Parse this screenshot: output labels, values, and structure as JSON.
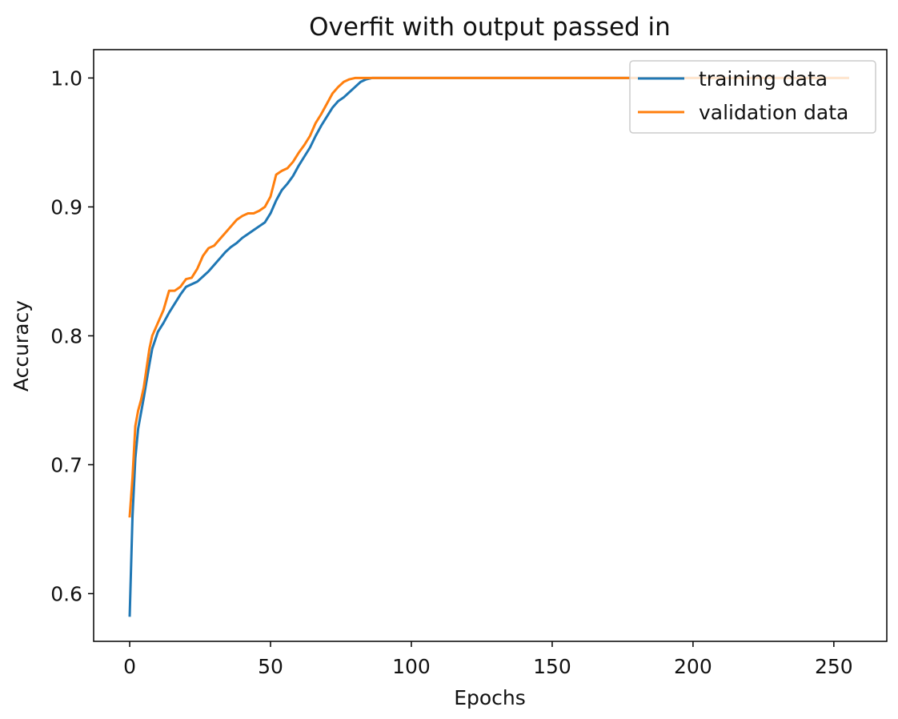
{
  "chart_data": {
    "type": "line",
    "title": "Overfit with output passed in",
    "xlabel": "Epochs",
    "ylabel": "Accuracy",
    "xlim": [
      -12.8,
      268.8
    ],
    "ylim": [
      0.563,
      1.022
    ],
    "xticks": [
      0,
      50,
      100,
      150,
      200,
      250
    ],
    "xtick_labels": [
      "0",
      "50",
      "100",
      "150",
      "200",
      "250"
    ],
    "yticks": [
      0.6,
      0.7,
      0.8,
      0.9,
      1.0
    ],
    "ytick_labels": [
      "0.6",
      "0.7",
      "0.8",
      "0.9",
      "1.0"
    ],
    "grid": false,
    "legend_position": "top-right",
    "series": [
      {
        "name": "training data",
        "color": "#1f77b4",
        "x": [
          0,
          1,
          2,
          3,
          4,
          5,
          6,
          7,
          8,
          10,
          12,
          14,
          16,
          18,
          20,
          22,
          24,
          26,
          28,
          30,
          32,
          34,
          36,
          38,
          40,
          42,
          44,
          46,
          48,
          50,
          52,
          54,
          56,
          58,
          60,
          62,
          64,
          66,
          68,
          70,
          72,
          74,
          76,
          78,
          80,
          82,
          84,
          86,
          88,
          90,
          100,
          150,
          200,
          255
        ],
        "y": [
          0.583,
          0.66,
          0.705,
          0.728,
          0.74,
          0.752,
          0.765,
          0.778,
          0.79,
          0.803,
          0.81,
          0.818,
          0.825,
          0.832,
          0.838,
          0.84,
          0.842,
          0.846,
          0.85,
          0.855,
          0.86,
          0.865,
          0.869,
          0.872,
          0.876,
          0.879,
          0.882,
          0.885,
          0.888,
          0.895,
          0.905,
          0.913,
          0.918,
          0.924,
          0.932,
          0.939,
          0.946,
          0.955,
          0.963,
          0.97,
          0.977,
          0.982,
          0.985,
          0.989,
          0.993,
          0.997,
          0.999,
          1.0,
          1.0,
          1.0,
          1.0,
          1.0,
          1.0,
          1.0
        ]
      },
      {
        "name": "validation data",
        "color": "#ff7f0e",
        "x": [
          0,
          1,
          2,
          3,
          4,
          5,
          6,
          7,
          8,
          10,
          12,
          14,
          16,
          18,
          20,
          22,
          24,
          26,
          28,
          30,
          32,
          34,
          36,
          38,
          40,
          42,
          44,
          46,
          48,
          50,
          52,
          54,
          56,
          58,
          60,
          62,
          64,
          66,
          68,
          70,
          72,
          74,
          76,
          78,
          80,
          90,
          100,
          150,
          200,
          255
        ],
        "y": [
          0.66,
          0.69,
          0.73,
          0.742,
          0.75,
          0.76,
          0.775,
          0.79,
          0.8,
          0.81,
          0.82,
          0.835,
          0.835,
          0.838,
          0.844,
          0.845,
          0.852,
          0.862,
          0.868,
          0.87,
          0.875,
          0.88,
          0.885,
          0.89,
          0.893,
          0.895,
          0.895,
          0.897,
          0.9,
          0.908,
          0.925,
          0.928,
          0.93,
          0.935,
          0.942,
          0.948,
          0.955,
          0.965,
          0.972,
          0.98,
          0.988,
          0.993,
          0.997,
          0.999,
          1.0,
          1.0,
          1.0,
          1.0,
          1.0,
          1.0
        ]
      }
    ]
  }
}
